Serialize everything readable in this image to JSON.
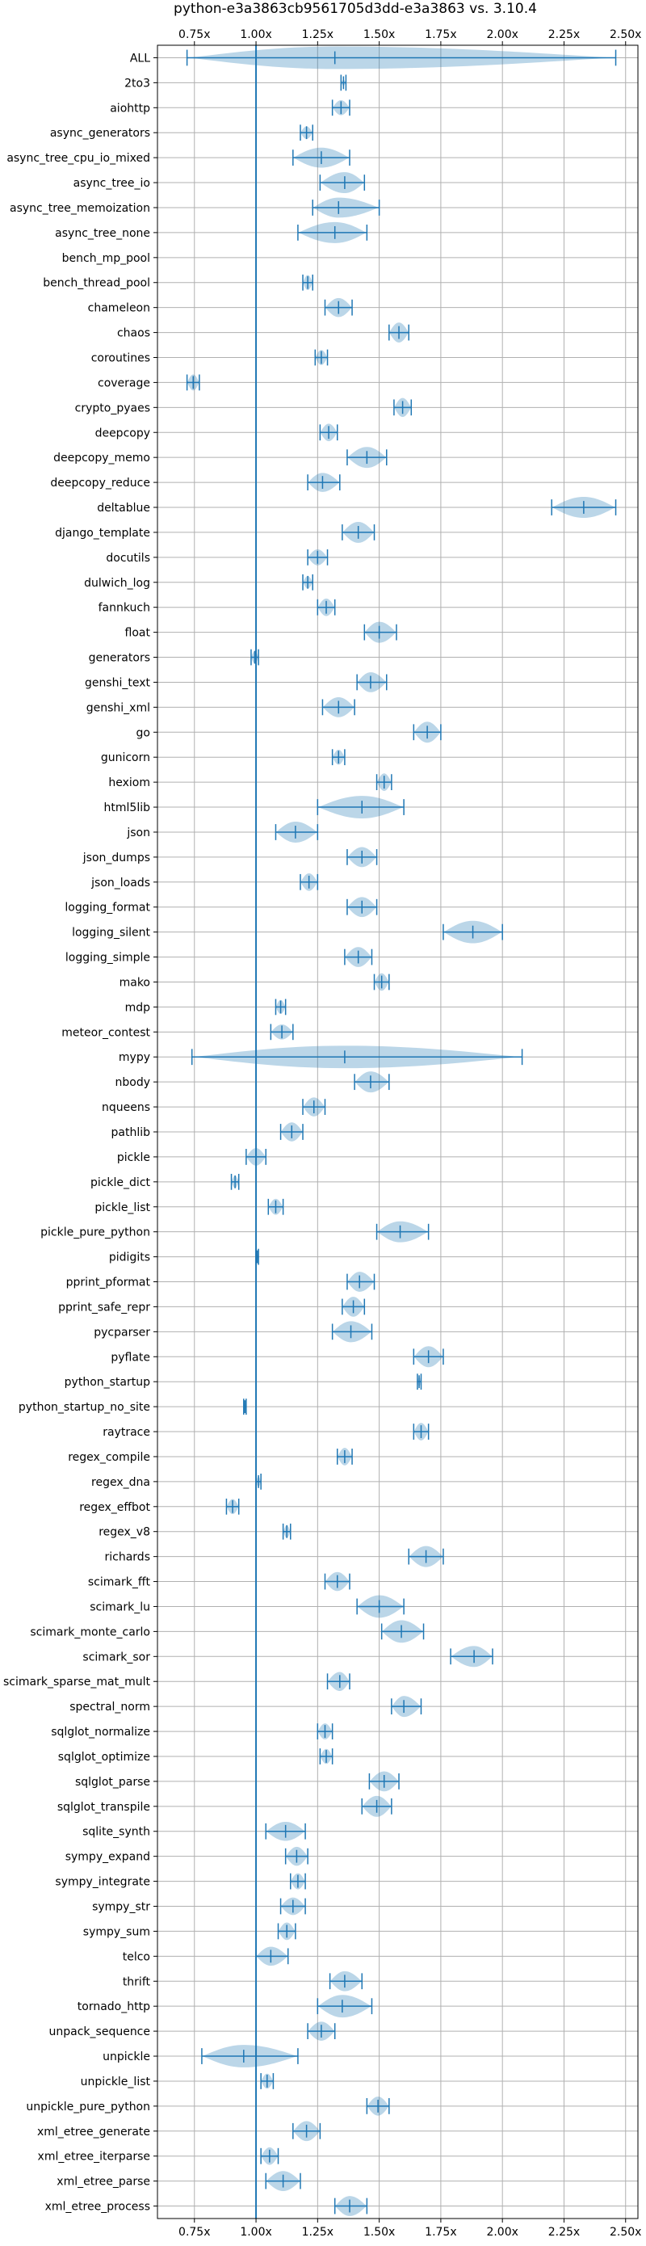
{
  "chart_data": {
    "type": "violin",
    "title": "python-e3a3863cb9561705d3dd-e3a3863 vs. 3.10.4",
    "xlabel": "",
    "ylabel": "",
    "xlim": [
      0.6,
      2.55
    ],
    "x_ticks": [
      0.75,
      1.0,
      1.25,
      1.5,
      1.75,
      2.0,
      2.25,
      2.5
    ],
    "x_tick_labels": [
      "0.75x",
      "1.00x",
      "1.25x",
      "1.50x",
      "1.75x",
      "2.00x",
      "2.25x",
      "2.50x"
    ],
    "reference_line": 1.0,
    "grid": true,
    "colors": {
      "violin": "#1f77b4",
      "reference": "#1f77b4",
      "grid": "#b0b0b0"
    },
    "benchmarks": [
      {
        "name": "ALL",
        "min": 0.72,
        "max": 2.46,
        "mean": 1.32,
        "width": 0.45
      },
      {
        "name": "2to3",
        "min": 1.345,
        "max": 1.365,
        "mean": 1.355,
        "width": 0.12
      },
      {
        "name": "aiohttp",
        "min": 1.31,
        "max": 1.38,
        "mean": 1.345,
        "width": 0.3
      },
      {
        "name": "async_generators",
        "min": 1.18,
        "max": 1.23,
        "mean": 1.205,
        "width": 0.25
      },
      {
        "name": "async_tree_cpu_io_mixed",
        "min": 1.15,
        "max": 1.38,
        "mean": 1.265,
        "width": 0.4
      },
      {
        "name": "async_tree_io",
        "min": 1.26,
        "max": 1.44,
        "mean": 1.36,
        "width": 0.42
      },
      {
        "name": "async_tree_memoization",
        "min": 1.23,
        "max": 1.5,
        "mean": 1.335,
        "width": 0.4
      },
      {
        "name": "async_tree_none",
        "min": 1.17,
        "max": 1.45,
        "mean": 1.32,
        "width": 0.42
      },
      {
        "name": "bench_mp_pool",
        "min": null,
        "max": null,
        "mean": null,
        "width": 0
      },
      {
        "name": "bench_thread_pool",
        "min": 1.19,
        "max": 1.23,
        "mean": 1.21,
        "width": 0.3
      },
      {
        "name": "chameleon",
        "min": 1.28,
        "max": 1.39,
        "mean": 1.335,
        "width": 0.38
      },
      {
        "name": "chaos",
        "min": 1.54,
        "max": 1.62,
        "mean": 1.58,
        "width": 0.4
      },
      {
        "name": "coroutines",
        "min": 1.24,
        "max": 1.29,
        "mean": 1.265,
        "width": 0.3
      },
      {
        "name": "coverage",
        "min": 0.72,
        "max": 0.77,
        "mean": 0.745,
        "width": 0.32
      },
      {
        "name": "crypto_pyaes",
        "min": 1.56,
        "max": 1.63,
        "mean": 1.595,
        "width": 0.38
      },
      {
        "name": "deepcopy",
        "min": 1.26,
        "max": 1.33,
        "mean": 1.295,
        "width": 0.35
      },
      {
        "name": "deepcopy_memo",
        "min": 1.37,
        "max": 1.53,
        "mean": 1.45,
        "width": 0.42
      },
      {
        "name": "deepcopy_reduce",
        "min": 1.21,
        "max": 1.34,
        "mean": 1.27,
        "width": 0.38
      },
      {
        "name": "deltablue",
        "min": 2.2,
        "max": 2.46,
        "mean": 2.33,
        "width": 0.42
      },
      {
        "name": "django_template",
        "min": 1.35,
        "max": 1.48,
        "mean": 1.415,
        "width": 0.42
      },
      {
        "name": "docutils",
        "min": 1.21,
        "max": 1.29,
        "mean": 1.25,
        "width": 0.32
      },
      {
        "name": "dulwich_log",
        "min": 1.19,
        "max": 1.23,
        "mean": 1.21,
        "width": 0.25
      },
      {
        "name": "fannkuch",
        "min": 1.25,
        "max": 1.32,
        "mean": 1.285,
        "width": 0.35
      },
      {
        "name": "float",
        "min": 1.44,
        "max": 1.57,
        "mean": 1.5,
        "width": 0.42
      },
      {
        "name": "generators",
        "min": 0.98,
        "max": 1.01,
        "mean": 0.995,
        "width": 0.25
      },
      {
        "name": "genshi_text",
        "min": 1.41,
        "max": 1.53,
        "mean": 1.465,
        "width": 0.4
      },
      {
        "name": "genshi_xml",
        "min": 1.27,
        "max": 1.4,
        "mean": 1.335,
        "width": 0.4
      },
      {
        "name": "go",
        "min": 1.64,
        "max": 1.75,
        "mean": 1.695,
        "width": 0.42
      },
      {
        "name": "gunicorn",
        "min": 1.31,
        "max": 1.36,
        "mean": 1.335,
        "width": 0.3
      },
      {
        "name": "hexiom",
        "min": 1.49,
        "max": 1.55,
        "mean": 1.52,
        "width": 0.35
      },
      {
        "name": "html5lib",
        "min": 1.25,
        "max": 1.6,
        "mean": 1.43,
        "width": 0.45
      },
      {
        "name": "json",
        "min": 1.08,
        "max": 1.25,
        "mean": 1.16,
        "width": 0.42
      },
      {
        "name": "json_dumps",
        "min": 1.37,
        "max": 1.49,
        "mean": 1.43,
        "width": 0.4
      },
      {
        "name": "json_loads",
        "min": 1.18,
        "max": 1.25,
        "mean": 1.215,
        "width": 0.35
      },
      {
        "name": "logging_format",
        "min": 1.37,
        "max": 1.49,
        "mean": 1.43,
        "width": 0.4
      },
      {
        "name": "logging_silent",
        "min": 1.76,
        "max": 2.0,
        "mean": 1.88,
        "width": 0.45
      },
      {
        "name": "logging_simple",
        "min": 1.36,
        "max": 1.47,
        "mean": 1.415,
        "width": 0.4
      },
      {
        "name": "mako",
        "min": 1.48,
        "max": 1.54,
        "mean": 1.51,
        "width": 0.35
      },
      {
        "name": "mdp",
        "min": 1.08,
        "max": 1.12,
        "mean": 1.1,
        "width": 0.28
      },
      {
        "name": "meteor_contest",
        "min": 1.06,
        "max": 1.15,
        "mean": 1.105,
        "width": 0.3
      },
      {
        "name": "mypy",
        "min": 0.74,
        "max": 2.08,
        "mean": 1.36,
        "width": 0.45
      },
      {
        "name": "nbody",
        "min": 1.4,
        "max": 1.54,
        "mean": 1.465,
        "width": 0.42
      },
      {
        "name": "nqueens",
        "min": 1.19,
        "max": 1.28,
        "mean": 1.235,
        "width": 0.38
      },
      {
        "name": "pathlib",
        "min": 1.1,
        "max": 1.19,
        "mean": 1.145,
        "width": 0.38
      },
      {
        "name": "pickle",
        "min": 0.96,
        "max": 1.04,
        "mean": 1.0,
        "width": 0.35
      },
      {
        "name": "pickle_dict",
        "min": 0.9,
        "max": 0.93,
        "mean": 0.915,
        "width": 0.25
      },
      {
        "name": "pickle_list",
        "min": 1.05,
        "max": 1.11,
        "mean": 1.08,
        "width": 0.32
      },
      {
        "name": "pickle_pure_python",
        "min": 1.49,
        "max": 1.7,
        "mean": 1.585,
        "width": 0.42
      },
      {
        "name": "pidigits",
        "min": 1.0,
        "max": 1.01,
        "mean": 1.005,
        "width": 0.1
      },
      {
        "name": "pprint_pformat",
        "min": 1.37,
        "max": 1.48,
        "mean": 1.42,
        "width": 0.4
      },
      {
        "name": "pprint_safe_repr",
        "min": 1.35,
        "max": 1.44,
        "mean": 1.395,
        "width": 0.4
      },
      {
        "name": "pycparser",
        "min": 1.31,
        "max": 1.47,
        "mean": 1.385,
        "width": 0.42
      },
      {
        "name": "pyflate",
        "min": 1.64,
        "max": 1.76,
        "mean": 1.7,
        "width": 0.42
      },
      {
        "name": "python_startup",
        "min": 1.655,
        "max": 1.67,
        "mean": 1.662,
        "width": 0.2
      },
      {
        "name": "python_startup_no_site",
        "min": 0.95,
        "max": 0.96,
        "mean": 0.955,
        "width": 0.15
      },
      {
        "name": "raytrace",
        "min": 1.64,
        "max": 1.7,
        "mean": 1.67,
        "width": 0.35
      },
      {
        "name": "regex_compile",
        "min": 1.33,
        "max": 1.39,
        "mean": 1.36,
        "width": 0.35
      },
      {
        "name": "regex_dna",
        "min": 1.0,
        "max": 1.02,
        "mean": 1.01,
        "width": 0.2
      },
      {
        "name": "regex_effbot",
        "min": 0.88,
        "max": 0.93,
        "mean": 0.905,
        "width": 0.3
      },
      {
        "name": "regex_v8",
        "min": 1.11,
        "max": 1.14,
        "mean": 1.125,
        "width": 0.25
      },
      {
        "name": "richards",
        "min": 1.62,
        "max": 1.76,
        "mean": 1.69,
        "width": 0.42
      },
      {
        "name": "scimark_fft",
        "min": 1.28,
        "max": 1.38,
        "mean": 1.33,
        "width": 0.38
      },
      {
        "name": "scimark_lu",
        "min": 1.41,
        "max": 1.6,
        "mean": 1.5,
        "width": 0.45
      },
      {
        "name": "scimark_monte_carlo",
        "min": 1.51,
        "max": 1.68,
        "mean": 1.59,
        "width": 0.45
      },
      {
        "name": "scimark_sor",
        "min": 1.79,
        "max": 1.96,
        "mean": 1.885,
        "width": 0.42
      },
      {
        "name": "scimark_sparse_mat_mult",
        "min": 1.29,
        "max": 1.38,
        "mean": 1.34,
        "width": 0.38
      },
      {
        "name": "spectral_norm",
        "min": 1.55,
        "max": 1.67,
        "mean": 1.6,
        "width": 0.42
      },
      {
        "name": "sqlglot_normalize",
        "min": 1.25,
        "max": 1.31,
        "mean": 1.28,
        "width": 0.32
      },
      {
        "name": "sqlglot_optimize",
        "min": 1.26,
        "max": 1.31,
        "mean": 1.285,
        "width": 0.3
      },
      {
        "name": "sqlglot_parse",
        "min": 1.46,
        "max": 1.58,
        "mean": 1.52,
        "width": 0.4
      },
      {
        "name": "sqlglot_transpile",
        "min": 1.43,
        "max": 1.55,
        "mean": 1.49,
        "width": 0.42
      },
      {
        "name": "sqlite_synth",
        "min": 1.04,
        "max": 1.2,
        "mean": 1.12,
        "width": 0.38
      },
      {
        "name": "sympy_expand",
        "min": 1.12,
        "max": 1.21,
        "mean": 1.165,
        "width": 0.38
      },
      {
        "name": "sympy_integrate",
        "min": 1.14,
        "max": 1.2,
        "mean": 1.17,
        "width": 0.32
      },
      {
        "name": "sympy_str",
        "min": 1.1,
        "max": 1.2,
        "mean": 1.15,
        "width": 0.35
      },
      {
        "name": "sympy_sum",
        "min": 1.09,
        "max": 1.16,
        "mean": 1.125,
        "width": 0.35
      },
      {
        "name": "telco",
        "min": 1.0,
        "max": 1.13,
        "mean": 1.06,
        "width": 0.38
      },
      {
        "name": "thrift",
        "min": 1.3,
        "max": 1.43,
        "mean": 1.36,
        "width": 0.4
      },
      {
        "name": "tornado_http",
        "min": 1.25,
        "max": 1.47,
        "mean": 1.35,
        "width": 0.45
      },
      {
        "name": "unpack_sequence",
        "min": 1.21,
        "max": 1.32,
        "mean": 1.265,
        "width": 0.38
      },
      {
        "name": "unpickle",
        "min": 0.78,
        "max": 1.17,
        "mean": 0.95,
        "width": 0.45
      },
      {
        "name": "unpickle_list",
        "min": 1.02,
        "max": 1.07,
        "mean": 1.045,
        "width": 0.3
      },
      {
        "name": "unpickle_pure_python",
        "min": 1.45,
        "max": 1.54,
        "mean": 1.495,
        "width": 0.38
      },
      {
        "name": "xml_etree_generate",
        "min": 1.15,
        "max": 1.26,
        "mean": 1.205,
        "width": 0.4
      },
      {
        "name": "xml_etree_iterparse",
        "min": 1.02,
        "max": 1.09,
        "mean": 1.055,
        "width": 0.35
      },
      {
        "name": "xml_etree_parse",
        "min": 1.04,
        "max": 1.18,
        "mean": 1.11,
        "width": 0.4
      },
      {
        "name": "xml_etree_process",
        "min": 1.32,
        "max": 1.45,
        "mean": 1.38,
        "width": 0.4
      }
    ]
  }
}
